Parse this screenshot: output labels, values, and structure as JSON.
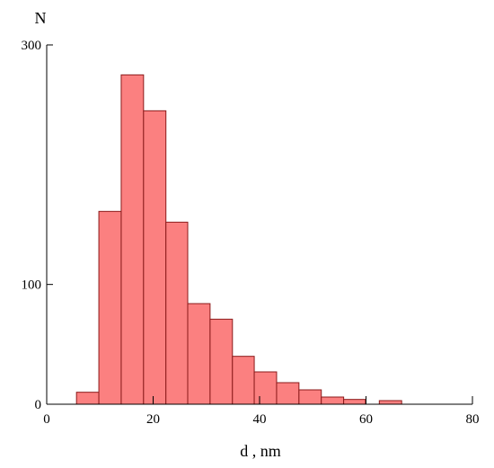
{
  "chart_data": {
    "type": "bar",
    "title": "",
    "xlabel": "d , nm",
    "ylabel": "N",
    "xlim": [
      0,
      80
    ],
    "ylim": [
      0,
      300
    ],
    "xticks": [
      "0",
      "20",
      "40",
      "60",
      "80"
    ],
    "yticks": [
      "0",
      "100",
      "300"
    ],
    "grid": false,
    "bin_width": 4.17,
    "bins": [
      {
        "x0": 5.6,
        "x1": 9.8,
        "value": 10
      },
      {
        "x0": 9.8,
        "x1": 14.0,
        "value": 161
      },
      {
        "x0": 14.0,
        "x1": 18.2,
        "value": 275
      },
      {
        "x0": 18.2,
        "x1": 22.4,
        "value": 245
      },
      {
        "x0": 22.4,
        "x1": 26.5,
        "value": 152
      },
      {
        "x0": 26.5,
        "x1": 30.7,
        "value": 84
      },
      {
        "x0": 30.7,
        "x1": 34.9,
        "value": 71
      },
      {
        "x0": 34.9,
        "x1": 39.0,
        "value": 40
      },
      {
        "x0": 39.0,
        "x1": 43.2,
        "value": 27
      },
      {
        "x0": 43.2,
        "x1": 47.4,
        "value": 18
      },
      {
        "x0": 47.4,
        "x1": 51.6,
        "value": 12
      },
      {
        "x0": 51.6,
        "x1": 55.8,
        "value": 6
      },
      {
        "x0": 55.8,
        "x1": 59.9,
        "value": 4
      },
      {
        "x0": 62.5,
        "x1": 66.7,
        "value": 3
      }
    ],
    "colors": {
      "bar_fill": "#fb8080",
      "bar_stroke": "#8b1a1a",
      "axis": "#000000"
    }
  }
}
